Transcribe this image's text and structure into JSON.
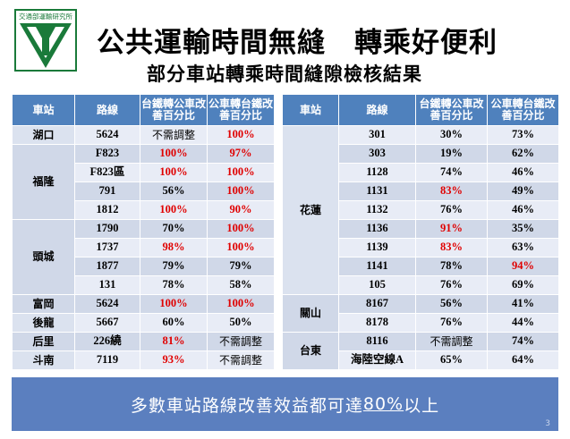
{
  "logo": {
    "text": "交通部運輸研究所",
    "icon": "iot-logo-icon",
    "color": "#1a7a3a"
  },
  "title": {
    "main": "公共運輸時間無縫　轉乘好便利",
    "sub": "部分車站轉乘時間縫隙檢核結果"
  },
  "colors": {
    "header": "#4f81bd",
    "row_light": "#e8ecf6",
    "row_dark": "#d0d8e8",
    "highlight": "#e00000",
    "banner": "#5b7fbf"
  },
  "headers": {
    "station": "車站",
    "route": "路線",
    "rail_to_bus": "台鐵轉公車改善百分比",
    "bus_to_rail": "公車轉台鐵改善百分比"
  },
  "left_groups": [
    {
      "station": "湖口",
      "rows": [
        {
          "route": "5624",
          "a": "不需調整",
          "b": "100%",
          "a_red": false,
          "b_red": true
        }
      ]
    },
    {
      "station": "福隆",
      "rows": [
        {
          "route": "F823",
          "a": "100%",
          "b": "97%",
          "a_red": true,
          "b_red": true
        },
        {
          "route": "F823區",
          "a": "100%",
          "b": "100%",
          "a_red": true,
          "b_red": true
        },
        {
          "route": "791",
          "a": "56%",
          "b": "100%",
          "a_red": false,
          "b_red": true
        },
        {
          "route": "1812",
          "a": "100%",
          "b": "90%",
          "a_red": true,
          "b_red": true
        }
      ]
    },
    {
      "station": "頭城",
      "rows": [
        {
          "route": "1790",
          "a": "70%",
          "b": "100%",
          "a_red": false,
          "b_red": true
        },
        {
          "route": "1737",
          "a": "98%",
          "b": "100%",
          "a_red": true,
          "b_red": true
        },
        {
          "route": "1877",
          "a": "79%",
          "b": "79%",
          "a_red": false,
          "b_red": false
        },
        {
          "route": "131",
          "a": "78%",
          "b": "58%",
          "a_red": false,
          "b_red": false
        }
      ]
    },
    {
      "station": "富岡",
      "rows": [
        {
          "route": "5624",
          "a": "100%",
          "b": "100%",
          "a_red": true,
          "b_red": true
        }
      ]
    },
    {
      "station": "後龍",
      "rows": [
        {
          "route": "5667",
          "a": "60%",
          "b": "50%",
          "a_red": false,
          "b_red": false
        }
      ]
    },
    {
      "station": "后里",
      "rows": [
        {
          "route": "226繞",
          "a": "81%",
          "b": "不需調整",
          "a_red": true,
          "b_red": false
        }
      ]
    },
    {
      "station": "斗南",
      "rows": [
        {
          "route": "7119",
          "a": "93%",
          "b": "不需調整",
          "a_red": true,
          "b_red": false
        }
      ]
    }
  ],
  "right_groups": [
    {
      "station": "花蓮",
      "rows": [
        {
          "route": "301",
          "a": "30%",
          "b": "73%",
          "a_red": false,
          "b_red": false
        },
        {
          "route": "303",
          "a": "19%",
          "b": "62%",
          "a_red": false,
          "b_red": false
        },
        {
          "route": "1128",
          "a": "74%",
          "b": "46%",
          "a_red": false,
          "b_red": false
        },
        {
          "route": "1131",
          "a": "83%",
          "b": "49%",
          "a_red": true,
          "b_red": false
        },
        {
          "route": "1132",
          "a": "76%",
          "b": "46%",
          "a_red": false,
          "b_red": false
        },
        {
          "route": "1136",
          "a": "91%",
          "b": "35%",
          "a_red": true,
          "b_red": false
        },
        {
          "route": "1139",
          "a": "83%",
          "b": "63%",
          "a_red": true,
          "b_red": false
        },
        {
          "route": "1141",
          "a": "78%",
          "b": "94%",
          "a_red": false,
          "b_red": true
        },
        {
          "route": "105",
          "a": "76%",
          "b": "69%",
          "a_red": false,
          "b_red": false
        }
      ]
    },
    {
      "station": "關山",
      "rows": [
        {
          "route": "8167",
          "a": "56%",
          "b": "41%",
          "a_red": false,
          "b_red": false
        },
        {
          "route": "8178",
          "a": "76%",
          "b": "44%",
          "a_red": false,
          "b_red": false
        }
      ]
    },
    {
      "station": "台東",
      "rows": [
        {
          "route": "8116",
          "a": "不需調整",
          "b": "74%",
          "a_red": false,
          "b_red": false
        },
        {
          "route": "海陸空線A",
          "a": "65%",
          "b": "64%",
          "a_red": false,
          "b_red": false
        }
      ]
    }
  ],
  "banner": {
    "before": "多數車站路線改善效益都可達",
    "highlight": "80%",
    "after": "以上"
  },
  "page_number": "3"
}
